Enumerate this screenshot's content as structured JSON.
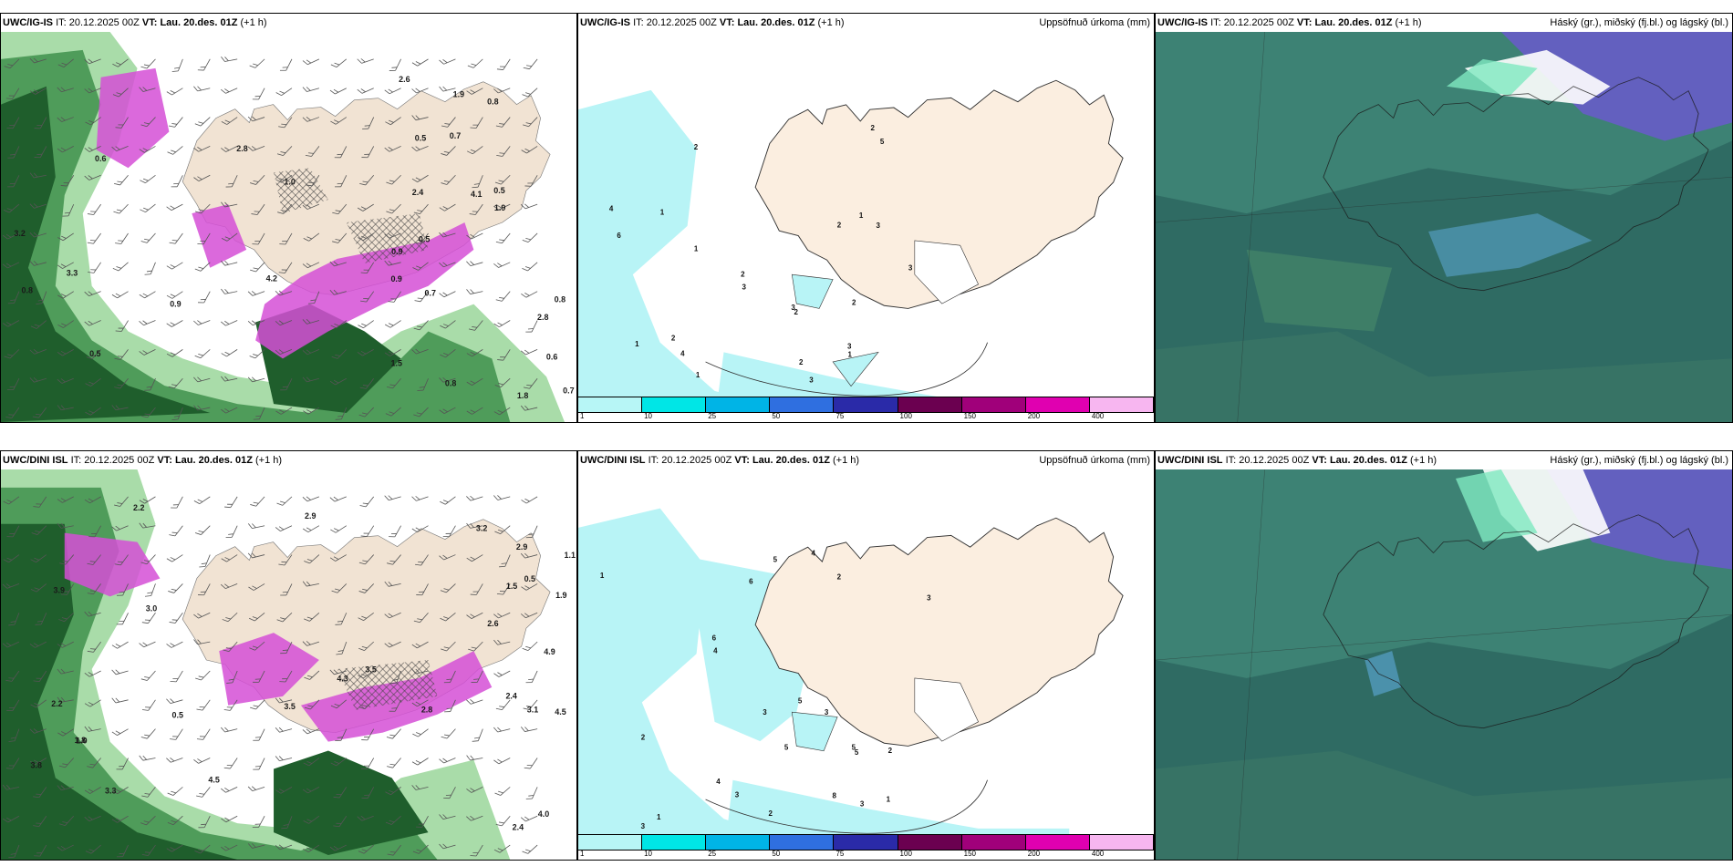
{
  "rows": [
    {
      "model": "UWC/IG-IS",
      "it_label": "IT:",
      "it_value": "20.12.2025 00Z",
      "vt_label": "VT:",
      "vt_value": "Lau. 20.des. 01Z",
      "lead": "(+1 h)"
    },
    {
      "model": "UWC/DINI ISL",
      "it_label": "IT:",
      "it_value": "20.12.2025 00Z",
      "vt_label": "VT:",
      "vt_value": "Lau. 20.des. 01Z",
      "lead": "(+1 h)"
    }
  ],
  "panel_titles": {
    "precip": "Uppsöfnuð úrkoma (mm)",
    "clouds": "Háský (gr.), miðský (fj.bl.) og lágský (bl.)"
  },
  "precip_colorbar": {
    "levels": [
      "1",
      "10",
      "25",
      "50",
      "75",
      "100",
      "150",
      "200",
      "400"
    ],
    "colors": [
      "#b7f6f6",
      "#00e6e6",
      "#00b4e6",
      "#2f6fe0",
      "#2a2aa8",
      "#6b0050",
      "#a0007a",
      "#e000b0",
      "#f7b6f0"
    ]
  },
  "precip_values": {
    "top": [
      "3",
      "2",
      "2",
      "1",
      "1",
      "2",
      "3",
      "1",
      "3",
      "4",
      "1",
      "4",
      "2",
      "3",
      "2",
      "2",
      "6",
      "5",
      "2",
      "3",
      "3",
      "2",
      "1",
      "1"
    ],
    "bottom": [
      "3",
      "2",
      "5",
      "5",
      "6",
      "4",
      "1",
      "2",
      "3",
      "4",
      "2",
      "4",
      "3",
      "5",
      "8",
      "6",
      "5",
      "2",
      "3",
      "3",
      "1",
      "1",
      "2",
      "3",
      "5"
    ]
  },
  "wind_values": {
    "top": [
      "0.9",
      "0.8",
      "4.1",
      "2.8",
      "1.5",
      "0.7",
      "0.5",
      "1.0",
      "0.6",
      "0.8",
      "0.5",
      "0.9",
      "0.8",
      "0.7",
      "0.9",
      "1.8",
      "0.8",
      "3.3",
      "1.9",
      "2.8",
      "4.2",
      "3.2",
      "2.4",
      "2.6",
      "1.9",
      "0.5",
      "0.6",
      "0.5",
      "0.7"
    ],
    "bottom": [
      "3.0",
      "1.0",
      "3.9",
      "4.5",
      "3.1",
      "4.9",
      "2.4",
      "0.5",
      "3.3",
      "2.2",
      "2.9",
      "3.8",
      "3.5",
      "1.9",
      "2.4",
      "3.5",
      "4.5",
      "2.2",
      "1.8",
      "2.6",
      "2.9",
      "3.2",
      "4.0",
      "2.8",
      "1.1",
      "4.3",
      "1.5",
      "0.5"
    ]
  },
  "colors": {
    "land": "#f3e4d4",
    "sea_precip": "#b8f4f6",
    "cloud_base": "#2f6b63",
    "cloud_mid": "#5aa08e",
    "cloud_high": "#6a5acd",
    "green_dark": "#1a5a2a",
    "green_light": "#9bd89b",
    "magenta": "#d64fd8"
  }
}
